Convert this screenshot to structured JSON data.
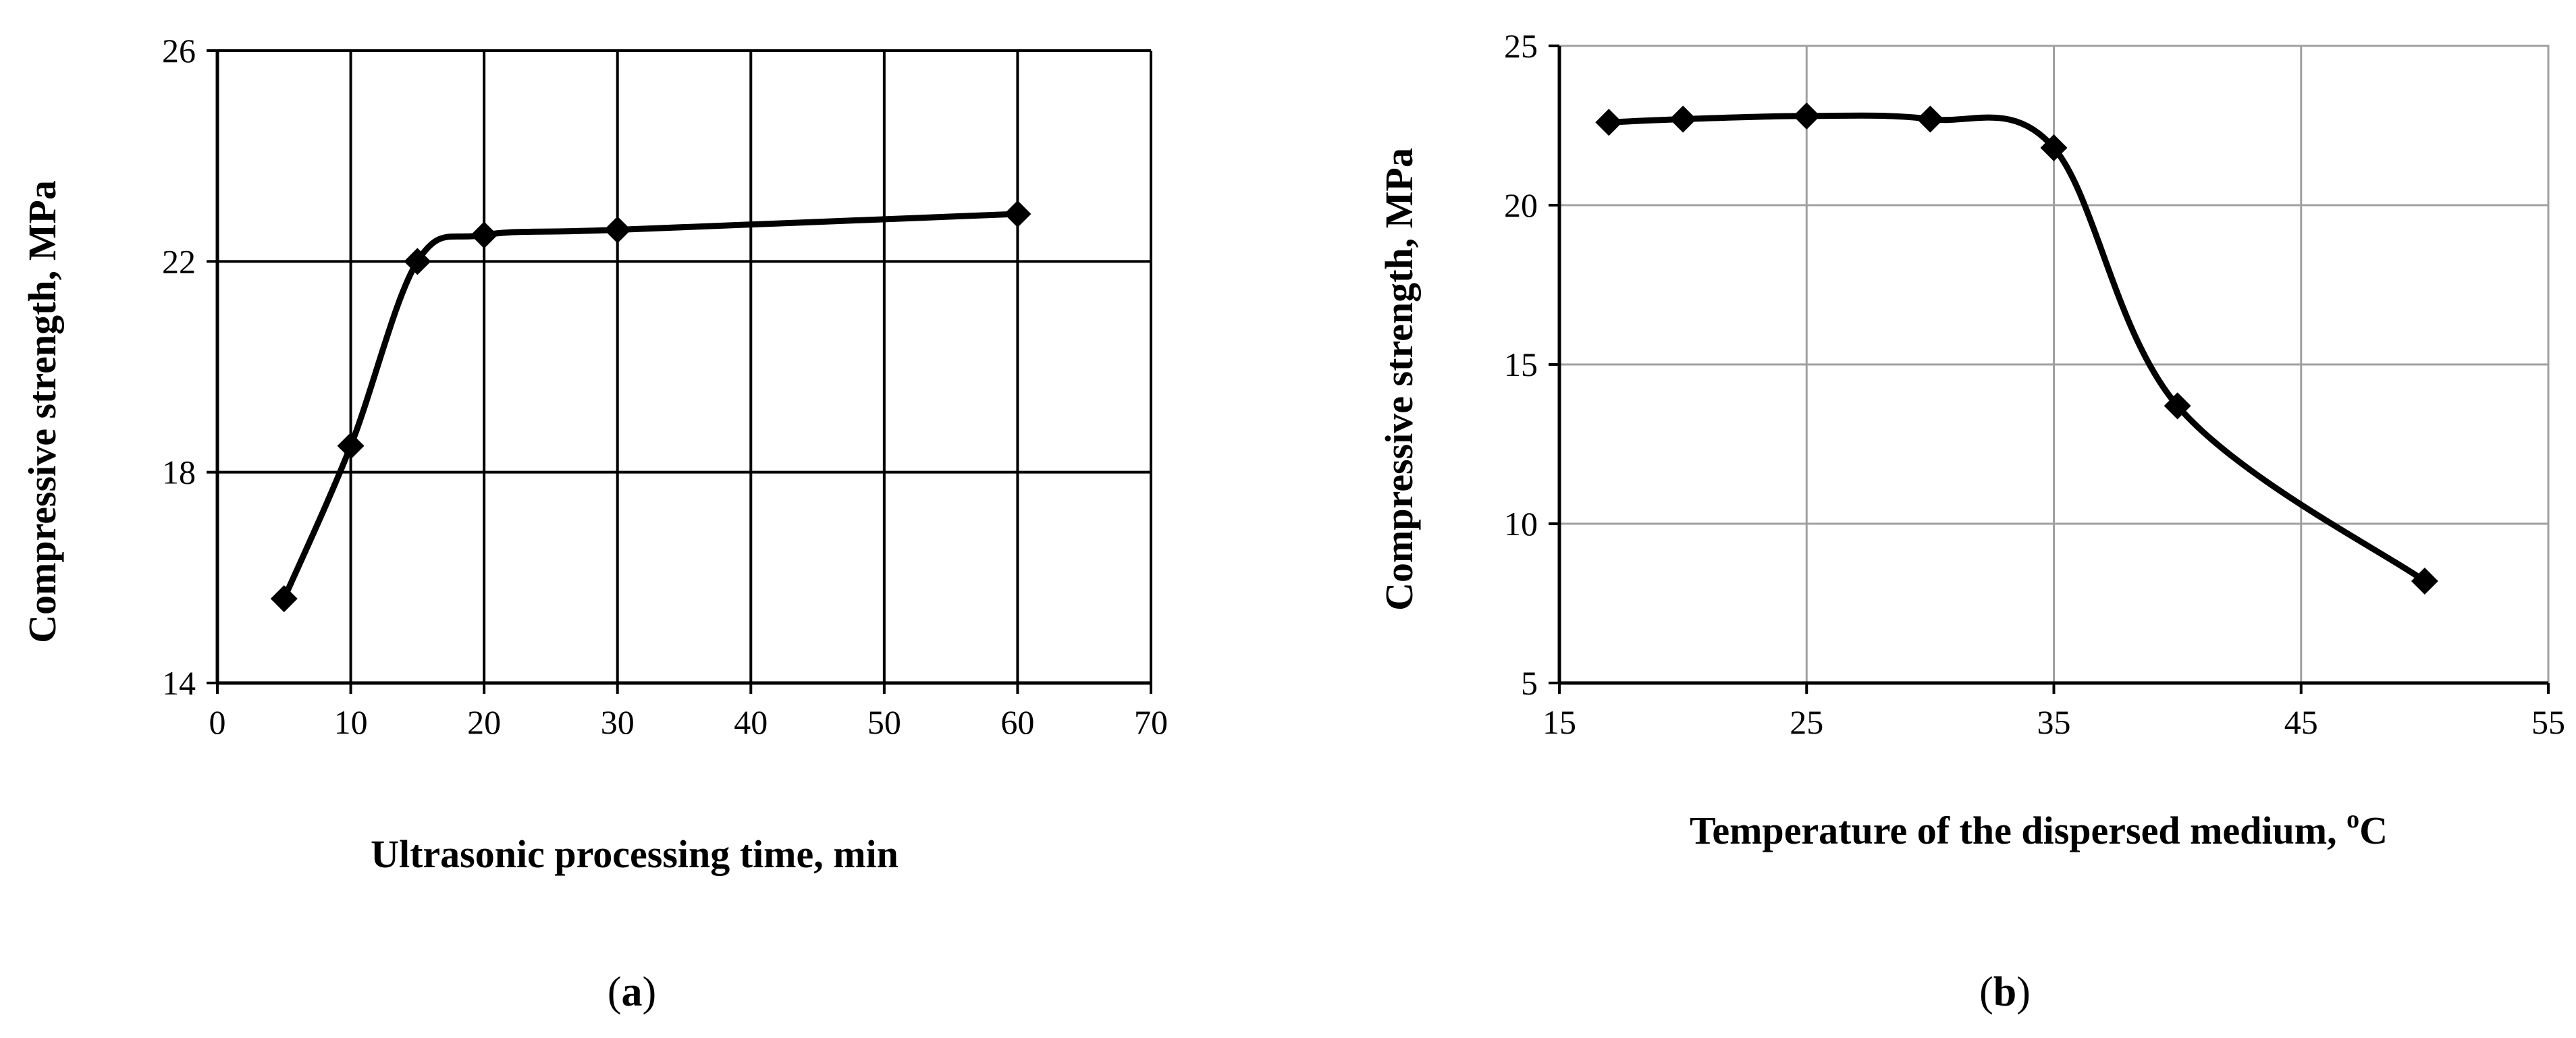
{
  "chart_data": [
    {
      "type": "line",
      "id": "a",
      "caption": {
        "open": "(",
        "letter": "a",
        "close": ")"
      },
      "xlabel": "Ultrasonic processing time, min",
      "ylabel": "Compressive strength, MPa",
      "xlim": [
        0,
        70
      ],
      "ylim": [
        14,
        26
      ],
      "xticks": [
        0,
        10,
        20,
        30,
        40,
        50,
        60,
        70
      ],
      "yticks": [
        14,
        18,
        22,
        26
      ],
      "grid": true,
      "smooth": true,
      "marker": "diamond",
      "series": [
        {
          "name": "Compressive strength",
          "x": [
            5,
            10,
            15,
            20,
            30,
            60
          ],
          "y": [
            15.6,
            18.5,
            22.0,
            22.5,
            22.6,
            22.9
          ]
        }
      ]
    },
    {
      "type": "line",
      "id": "b",
      "caption": {
        "open": "(",
        "letter": "b",
        "close": ")"
      },
      "xlabel": "Temperature of the dispersed medium, ",
      "xlabel_sup": "o",
      "xlabel_unit": "C",
      "ylabel": "Compressive strength, MPa",
      "xlim": [
        15,
        55
      ],
      "ylim": [
        5,
        25
      ],
      "xticks": [
        15,
        25,
        35,
        45,
        55
      ],
      "yticks": [
        5,
        10,
        15,
        20,
        25
      ],
      "grid": true,
      "smooth": true,
      "marker": "diamond",
      "series": [
        {
          "name": "Compressive strength",
          "x": [
            17,
            20,
            25,
            30,
            35,
            40,
            50
          ],
          "y": [
            22.6,
            22.7,
            22.8,
            22.7,
            21.8,
            13.7,
            8.2
          ]
        }
      ]
    }
  ]
}
